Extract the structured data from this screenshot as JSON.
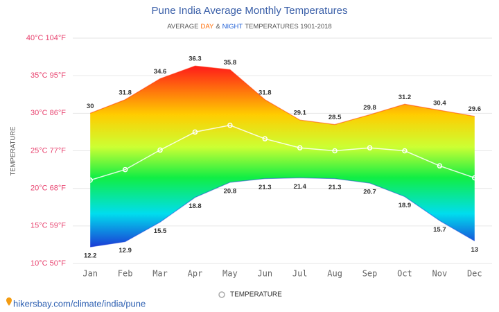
{
  "chart_data": {
    "type": "range-area",
    "title": "Pune India Average Monthly Temperatures",
    "subtitle": [
      {
        "text": "AVERAGE",
        "color": "#555555"
      },
      {
        "text": "DAY",
        "color": "#ff6a00"
      },
      {
        "text": "&",
        "color": "#555555"
      },
      {
        "text": "NIGHT",
        "color": "#1f5fd6"
      },
      {
        "text": "TEMPERATURES 1901-2018",
        "color": "#555555"
      }
    ],
    "y_label": "TEMPERATURE",
    "categories": [
      "Jan",
      "Feb",
      "Mar",
      "Apr",
      "May",
      "Jun",
      "Jul",
      "Aug",
      "Sep",
      "Oct",
      "Nov",
      "Dec"
    ],
    "series": [
      {
        "color": "#ff2a00",
        "values": [
          30,
          31.8,
          34.6,
          36.3,
          35.8,
          31.8,
          29.1,
          28.5,
          29.8,
          31.2,
          30.4,
          29.6
        ]
      },
      {
        "color": "#1a3fd6",
        "values": [
          12.2,
          12.9,
          15.5,
          18.8,
          20.8,
          21.3,
          21.4,
          21.3,
          20.7,
          18.9,
          15.7,
          13
        ]
      },
      {
        "name": "TEMPERATURE",
        "color": "#ffffff",
        "values": [
          21.1,
          22.5,
          25.1,
          27.5,
          28.4,
          26.6,
          25.4,
          25.0,
          25.4,
          25.0,
          23.0,
          21.4
        ]
      }
    ],
    "ylim": [
      10,
      40
    ],
    "yticks": [
      {
        "value": 10,
        "label": "10°C 50°F"
      },
      {
        "value": 15,
        "label": "15°C 59°F"
      },
      {
        "value": 20,
        "label": "20°C 68°F"
      },
      {
        "value": 25,
        "label": "25°C 77°F"
      },
      {
        "value": 30,
        "label": "30°C 86°F"
      },
      {
        "value": 35,
        "label": "35°C 95°F"
      },
      {
        "value": 40,
        "label": "40°C 104°F"
      }
    ],
    "grid": true,
    "source": "hikersbay.com/climate/india/pune"
  }
}
